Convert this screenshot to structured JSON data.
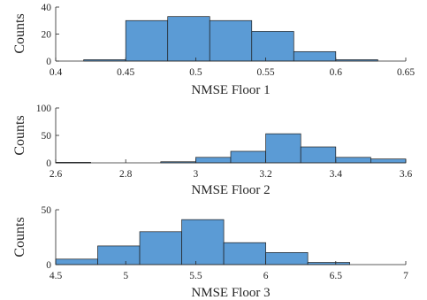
{
  "chart_data": [
    {
      "type": "bar",
      "xlabel": "NMSE Floor 1",
      "ylabel": "Counts",
      "xlim": [
        0.4,
        0.65
      ],
      "ylim": [
        0,
        40
      ],
      "xticks": [
        "0.4",
        "0.45",
        "0.5",
        "0.55",
        "0.6",
        "0.65"
      ],
      "yticks": [
        "0",
        "20",
        "40"
      ],
      "bins": [
        {
          "start": 0.42,
          "end": 0.45,
          "value": 1
        },
        {
          "start": 0.45,
          "end": 0.48,
          "value": 30
        },
        {
          "start": 0.48,
          "end": 0.51,
          "value": 33
        },
        {
          "start": 0.51,
          "end": 0.54,
          "value": 30
        },
        {
          "start": 0.54,
          "end": 0.57,
          "value": 22
        },
        {
          "start": 0.57,
          "end": 0.6,
          "value": 7
        },
        {
          "start": 0.6,
          "end": 0.63,
          "value": 1
        }
      ]
    },
    {
      "type": "bar",
      "xlabel": "NMSE Floor 2",
      "ylabel": "Counts",
      "xlim": [
        2.6,
        3.6
      ],
      "ylim": [
        0,
        100
      ],
      "xticks": [
        "2.6",
        "2.8",
        "3",
        "3.2",
        "3.4",
        "3.6"
      ],
      "yticks": [
        "0",
        "50",
        "100"
      ],
      "bins": [
        {
          "start": 2.6,
          "end": 2.7,
          "value": 1
        },
        {
          "start": 2.9,
          "end": 3.0,
          "value": 2
        },
        {
          "start": 3.0,
          "end": 3.1,
          "value": 10
        },
        {
          "start": 3.1,
          "end": 3.2,
          "value": 21
        },
        {
          "start": 3.2,
          "end": 3.3,
          "value": 53
        },
        {
          "start": 3.3,
          "end": 3.4,
          "value": 29
        },
        {
          "start": 3.4,
          "end": 3.5,
          "value": 10
        },
        {
          "start": 3.5,
          "end": 3.6,
          "value": 7
        }
      ]
    },
    {
      "type": "bar",
      "xlabel": "NMSE Floor 3",
      "ylabel": "Counts",
      "xlim": [
        4.5,
        7
      ],
      "ylim": [
        0,
        50
      ],
      "xticks": [
        "4.5",
        "5",
        "5.5",
        "6",
        "6.5",
        "7"
      ],
      "yticks": [
        "0",
        "50"
      ],
      "bins": [
        {
          "start": 4.5,
          "end": 4.8,
          "value": 5
        },
        {
          "start": 4.8,
          "end": 5.1,
          "value": 17
        },
        {
          "start": 5.1,
          "end": 5.4,
          "value": 30
        },
        {
          "start": 5.4,
          "end": 5.7,
          "value": 41
        },
        {
          "start": 5.7,
          "end": 6.0,
          "value": 20
        },
        {
          "start": 6.0,
          "end": 6.3,
          "value": 11
        },
        {
          "start": 6.3,
          "end": 6.6,
          "value": 2
        }
      ]
    }
  ]
}
